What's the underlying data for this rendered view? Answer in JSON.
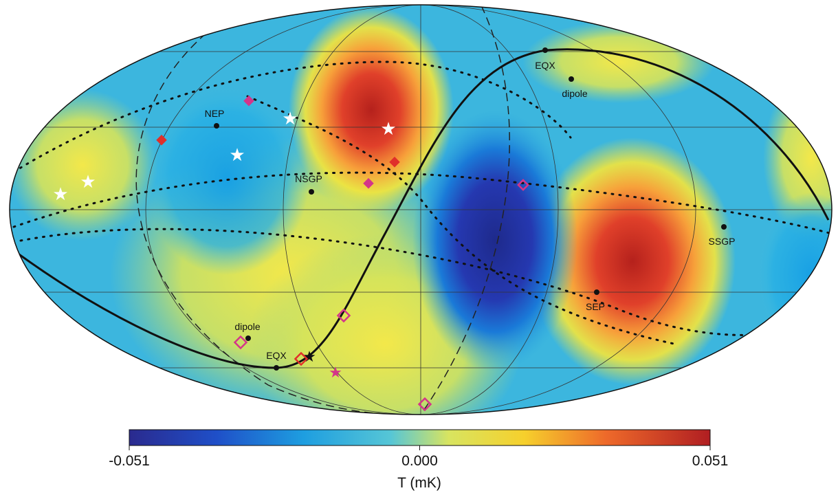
{
  "map": {
    "labels": [
      "EQX",
      "dipole",
      "NEP",
      "NSGP",
      "SSGP",
      "SEP",
      "dipole",
      "EQX"
    ]
  },
  "colorbar": {
    "range": [
      -0.051,
      0.051
    ],
    "ticks": [
      -0.051,
      {
        "value": 0,
        "label": "0.000"
      },
      0.051
    ],
    "label": "T (mK)"
  }
}
